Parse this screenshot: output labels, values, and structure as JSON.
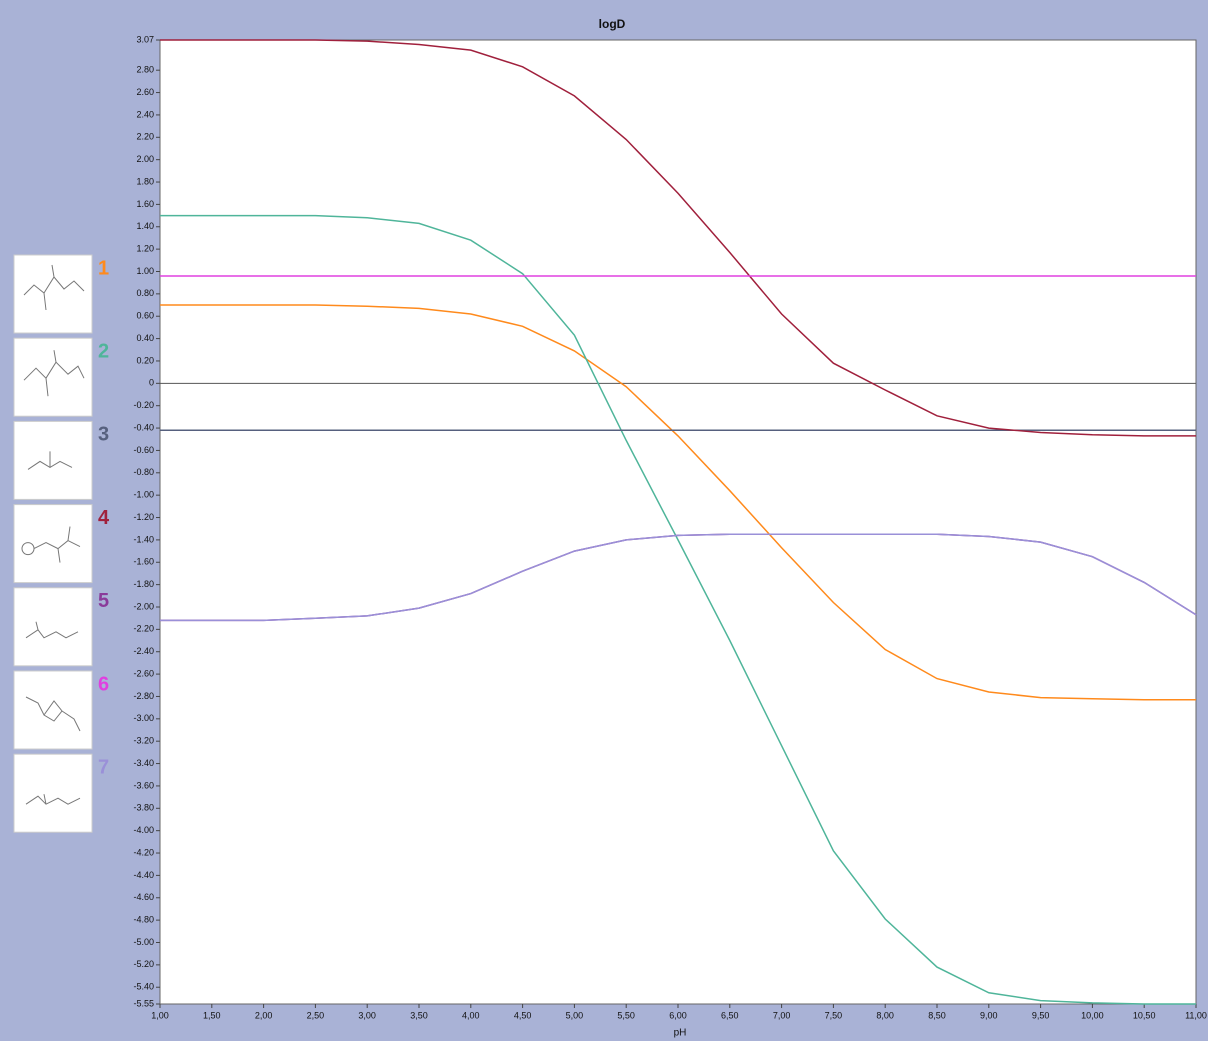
{
  "chart_data": {
    "type": "line",
    "title": "logD",
    "x_label": "pH",
    "x": [
      1.0,
      1.5,
      2.0,
      2.5,
      3.0,
      3.5,
      4.0,
      4.5,
      5.0,
      5.5,
      6.0,
      6.5,
      7.0,
      7.5,
      8.0,
      8.5,
      9.0,
      9.5,
      10.0,
      10.5,
      11.0
    ],
    "series": [
      {
        "name": "1",
        "color": "#ff8a1c",
        "values": [
          0.7,
          0.7,
          0.7,
          0.7,
          0.69,
          0.67,
          0.62,
          0.51,
          0.29,
          -0.03,
          -0.47,
          -0.96,
          -1.47,
          -1.96,
          -2.38,
          -2.64,
          -2.76,
          -2.81,
          -2.82,
          -2.83,
          -2.83
        ]
      },
      {
        "name": "2",
        "color": "#4fb59a",
        "values": [
          1.5,
          1.5,
          1.5,
          1.5,
          1.48,
          1.43,
          1.28,
          0.98,
          0.43,
          -0.51,
          -1.4,
          -2.3,
          -3.24,
          -4.18,
          -4.79,
          -5.22,
          -5.45,
          -5.52,
          -5.54,
          -5.55,
          -5.55
        ]
      },
      {
        "name": "3",
        "color": "#56607e",
        "values": [
          -0.42,
          -0.42,
          -0.42,
          -0.42,
          -0.42,
          -0.42,
          -0.42,
          -0.42,
          -0.42,
          -0.42,
          -0.42,
          -0.42,
          -0.42,
          -0.42,
          -0.42,
          -0.42,
          -0.42,
          -0.42,
          -0.42,
          -0.42,
          -0.42
        ]
      },
      {
        "name": "4",
        "color": "#a0203c",
        "values": [
          3.07,
          3.07,
          3.07,
          3.07,
          3.06,
          3.03,
          2.98,
          2.83,
          2.57,
          2.18,
          1.7,
          1.17,
          0.62,
          0.18,
          -0.06,
          -0.29,
          -0.4,
          -0.44,
          -0.46,
          -0.47,
          -0.47
        ]
      },
      {
        "name": "5",
        "color": "#8a3a9a",
        "values": [
          -2.12,
          -2.12,
          -2.12,
          -2.1,
          -2.08,
          -2.01,
          -1.88,
          -1.68,
          -1.5,
          -1.4,
          -1.36,
          -1.35,
          -1.35,
          -1.35,
          -1.35,
          -1.35,
          -1.37,
          -1.42,
          -1.55,
          -1.78,
          -2.07
        ]
      },
      {
        "name": "6",
        "color": "#e040e0",
        "values": [
          0.96,
          0.96,
          0.96,
          0.96,
          0.96,
          0.96,
          0.96,
          0.96,
          0.96,
          0.96,
          0.96,
          0.96,
          0.96,
          0.96,
          0.96,
          0.96,
          0.96,
          0.96,
          0.96,
          0.96,
          0.96
        ]
      },
      {
        "name": "7",
        "color": "#9a90d8",
        "values": [
          -2.12,
          -2.12,
          -2.12,
          -2.1,
          -2.08,
          -2.01,
          -1.88,
          -1.68,
          -1.5,
          -1.4,
          -1.36,
          -1.35,
          -1.35,
          -1.35,
          -1.35,
          -1.35,
          -1.37,
          -1.42,
          -1.55,
          -1.78,
          -2.07
        ]
      }
    ],
    "xlim": [
      1.0,
      11.0
    ],
    "xticks": [
      {
        "value": 1.0,
        "label": "1,00"
      },
      {
        "value": 1.5,
        "label": "1,50"
      },
      {
        "value": 2.0,
        "label": "2,00"
      },
      {
        "value": 2.5,
        "label": "2,50"
      },
      {
        "value": 3.0,
        "label": "3,00"
      },
      {
        "value": 3.5,
        "label": "3,50"
      },
      {
        "value": 4.0,
        "label": "4,00"
      },
      {
        "value": 4.5,
        "label": "4,50"
      },
      {
        "value": 5.0,
        "label": "5,00"
      },
      {
        "value": 5.5,
        "label": "5,50"
      },
      {
        "value": 6.0,
        "label": "6,00"
      },
      {
        "value": 6.5,
        "label": "6,50"
      },
      {
        "value": 7.0,
        "label": "7,00"
      },
      {
        "value": 7.5,
        "label": "7,50"
      },
      {
        "value": 8.0,
        "label": "8,00"
      },
      {
        "value": 8.5,
        "label": "8,50"
      },
      {
        "value": 9.0,
        "label": "9,00"
      },
      {
        "value": 9.5,
        "label": "9,50"
      },
      {
        "value": 10.0,
        "label": "10,00"
      },
      {
        "value": 10.5,
        "label": "10,50"
      },
      {
        "value": 11.0,
        "label": "11,00"
      }
    ],
    "ylim": [
      -5.55,
      3.07
    ],
    "yticks": [
      3.07,
      {
        "value": 2.8,
        "label": "2.80"
      },
      {
        "value": 2.6,
        "label": "2.60"
      },
      {
        "value": 2.4,
        "label": "2.40"
      },
      {
        "value": 2.2,
        "label": "2.20"
      },
      {
        "value": 2.0,
        "label": "2.00"
      },
      {
        "value": 1.8,
        "label": "1.80"
      },
      {
        "value": 1.6,
        "label": "1.60"
      },
      {
        "value": 1.4,
        "label": "1.40"
      },
      {
        "value": 1.2,
        "label": "1.20"
      },
      {
        "value": 1.0,
        "label": "1.00"
      },
      {
        "value": 0.8,
        "label": "0.80"
      },
      {
        "value": 0.6,
        "label": "0.60"
      },
      {
        "value": 0.4,
        "label": "0.40"
      },
      {
        "value": 0.2,
        "label": "0.20"
      },
      0,
      {
        "value": -0.2,
        "label": "-0.20"
      },
      {
        "value": -0.4,
        "label": "-0.40"
      },
      {
        "value": -0.6,
        "label": "-0.60"
      },
      {
        "value": -0.8,
        "label": "-0.80"
      },
      {
        "value": -1.0,
        "label": "-1.00"
      },
      {
        "value": -1.2,
        "label": "-1.20"
      },
      {
        "value": -1.4,
        "label": "-1.40"
      },
      {
        "value": -1.6,
        "label": "-1.60"
      },
      {
        "value": -1.8,
        "label": "-1.80"
      },
      {
        "value": -2.0,
        "label": "-2.00"
      },
      {
        "value": -2.2,
        "label": "-2.20"
      },
      {
        "value": -2.4,
        "label": "-2.40"
      },
      {
        "value": -2.6,
        "label": "-2.60"
      },
      {
        "value": -2.8,
        "label": "-2.80"
      },
      {
        "value": -3.0,
        "label": "-3.00"
      },
      {
        "value": -3.2,
        "label": "-3.20"
      },
      {
        "value": -3.4,
        "label": "-3.40"
      },
      {
        "value": -3.6,
        "label": "-3.60"
      },
      {
        "value": -3.8,
        "label": "-3.80"
      },
      {
        "value": -4.0,
        "label": "-4.00"
      },
      {
        "value": -4.2,
        "label": "-4.20"
      },
      {
        "value": -4.4,
        "label": "-4.40"
      },
      {
        "value": -4.6,
        "label": "-4.60"
      },
      {
        "value": -4.8,
        "label": "-4.80"
      },
      {
        "value": -5.0,
        "label": "-5.00"
      },
      {
        "value": -5.2,
        "label": "-5.20"
      },
      {
        "value": -5.4,
        "label": "-5.40"
      },
      -5.55
    ],
    "zero_line": true,
    "grid": false,
    "legend": "left"
  }
}
